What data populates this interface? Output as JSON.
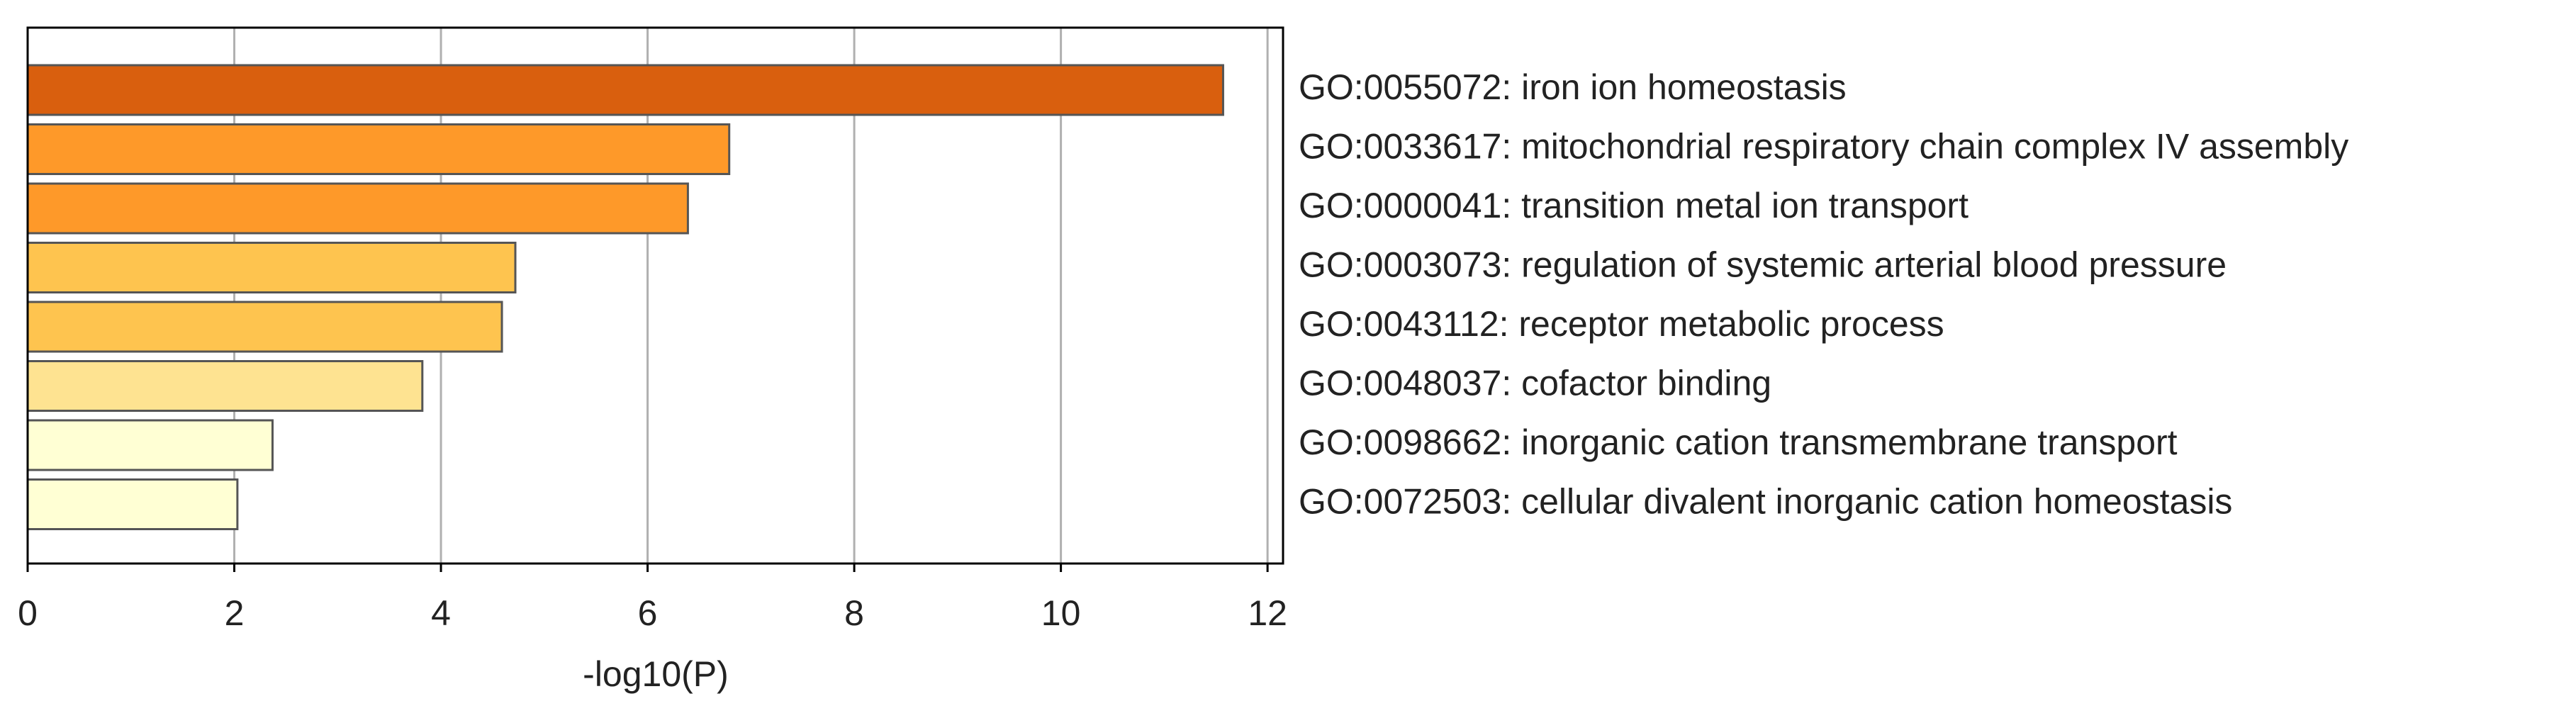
{
  "chart_data": {
    "type": "barh",
    "xlabel": "-log10(P)",
    "categories": [
      "GO:0055072: iron ion homeostasis",
      "GO:0033617: mitochondrial respiratory chain complex IV assembly",
      "GO:0000041: transition metal ion transport",
      "GO:0003073: regulation of systemic arterial blood pressure",
      "GO:0043112: receptor metabolic process",
      "GO:0048037: cofactor binding",
      "GO:0098662: inorganic cation transmembrane transport",
      "GO:0072503: cellular divalent inorganic cation homeostasis"
    ],
    "values": [
      11.57,
      6.79,
      6.39,
      4.72,
      4.59,
      3.82,
      2.37,
      2.03
    ],
    "colors": [
      "#d95f0e",
      "#fe9929",
      "#fe9929",
      "#fec44f",
      "#fec44f",
      "#fee391",
      "#ffffd4",
      "#ffffd4"
    ],
    "xlim": [
      0,
      12.15
    ],
    "xticks": [
      0,
      2,
      4,
      6,
      8,
      10,
      12
    ],
    "grid": true
  }
}
